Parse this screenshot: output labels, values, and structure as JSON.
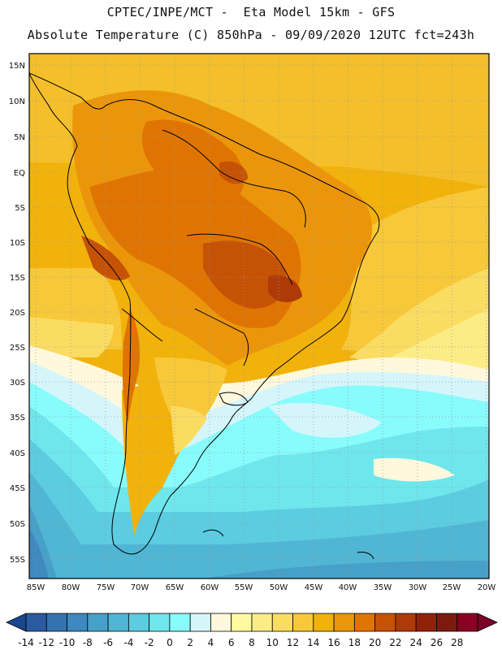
{
  "header": {
    "line1": "CPTEC/INPE/MCT -  Eta Model 15km - GFS",
    "line2": "Absolute Temperature (C) 850hPa - 09/09/2020 12UTC fct=243h"
  },
  "map": {
    "lat_labels": [
      "15N",
      "10N",
      "5N",
      "EQ",
      "5S",
      "10S",
      "15S",
      "20S",
      "25S",
      "30S",
      "35S",
      "40S",
      "45S",
      "50S",
      "55S"
    ],
    "lon_labels": [
      "85W",
      "80W",
      "75W",
      "70W",
      "65W",
      "60W",
      "55W",
      "50W",
      "45W",
      "40W",
      "35W",
      "30W",
      "25W",
      "20W"
    ],
    "frame_color": "#000000"
  },
  "colorbar": {
    "tick_labels": [
      "-14",
      "-12",
      "-10",
      "-8",
      "-6",
      "-4",
      "-2",
      "0",
      "2",
      "4",
      "6",
      "8",
      "10",
      "12",
      "14",
      "16",
      "18",
      "20",
      "22",
      "24",
      "26",
      "28"
    ],
    "colors": [
      "#1a4690",
      "#2a5aa0",
      "#3572b0",
      "#3f88c0",
      "#47a0c8",
      "#50b6d4",
      "#5ccce0",
      "#6ee6ec",
      "#88fbfb",
      "#d4f6fb",
      "#fff8dc",
      "#fffaa0",
      "#fcec86",
      "#fbdc62",
      "#f7c83a",
      "#f2b20c",
      "#eb960a",
      "#e07402",
      "#c65205",
      "#ae3a07",
      "#922109",
      "#7c1a10",
      "#8a0020",
      "#7a0028"
    ]
  }
}
